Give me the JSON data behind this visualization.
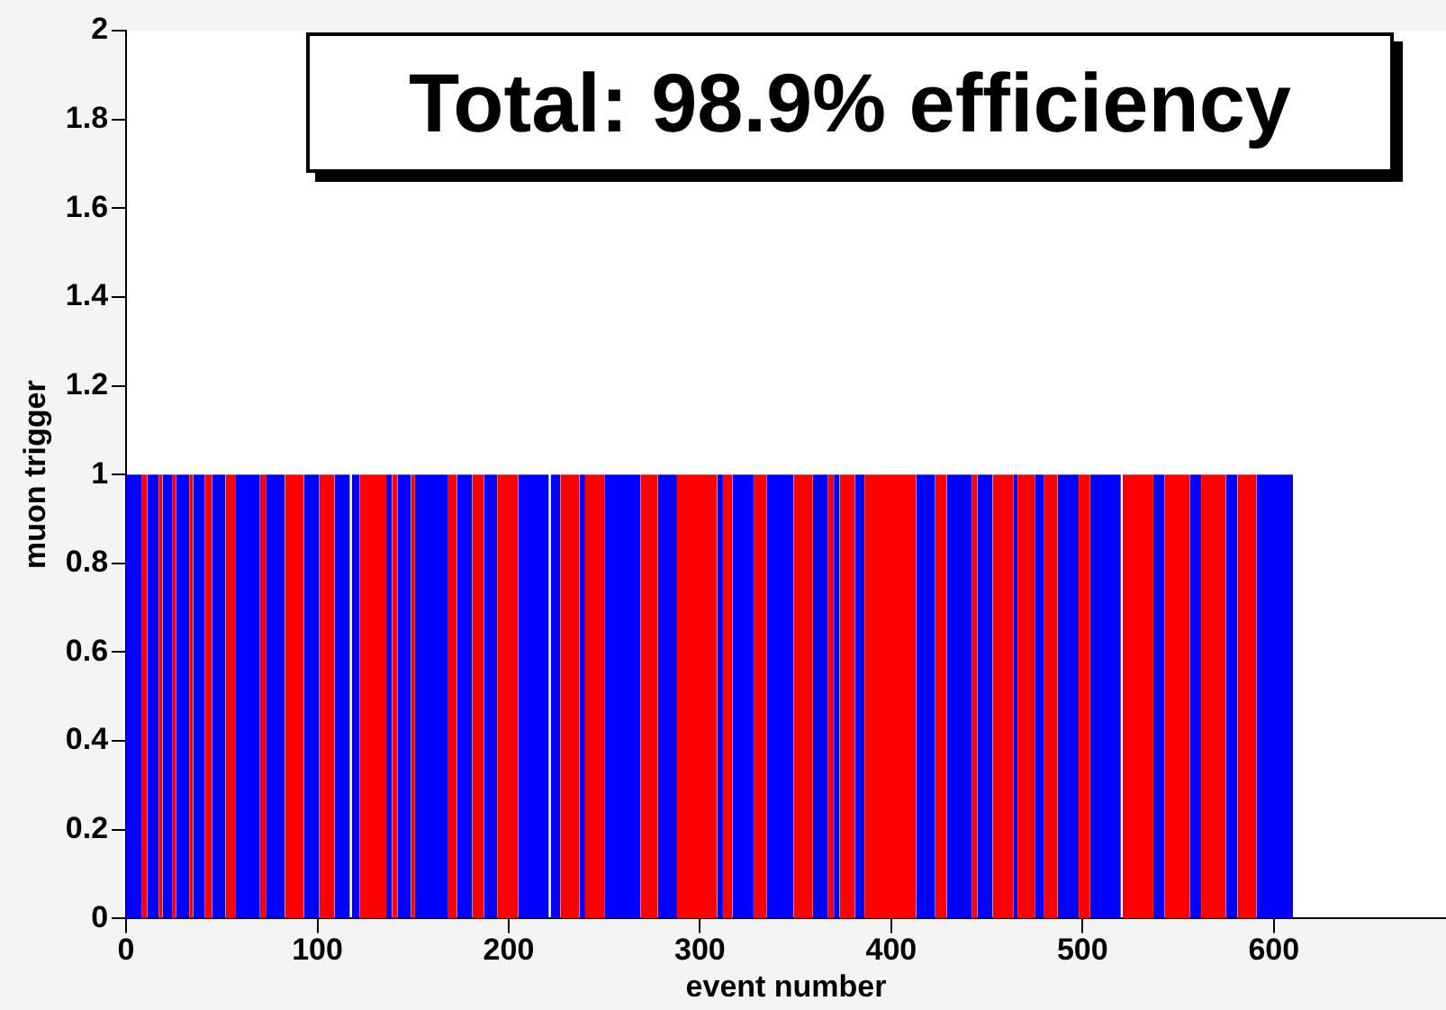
{
  "chart_data": {
    "type": "histogram",
    "title": "Total: 98.9% efficiency",
    "xlabel": "event number",
    "ylabel": "muon trigger",
    "bins": [
      0,
      8,
      11,
      17,
      19,
      24,
      26,
      33,
      35,
      41,
      45,
      52,
      57,
      70,
      73,
      83,
      93,
      101,
      109,
      117,
      118,
      122,
      136,
      139,
      142,
      149,
      151,
      168,
      173,
      181,
      187,
      194,
      205,
      221,
      222,
      227,
      237,
      240,
      250,
      269,
      278,
      288,
      309,
      312,
      317,
      328,
      335,
      349,
      359,
      367,
      370,
      373,
      381,
      386,
      413,
      423,
      429,
      442,
      445,
      453,
      464,
      466,
      475,
      480,
      487,
      498,
      504,
      520,
      521,
      537,
      543,
      556,
      562,
      575,
      581,
      591,
      610
    ],
    "values": [
      1,
      1,
      1,
      1,
      1,
      1,
      1,
      1,
      1,
      1,
      1,
      1,
      1,
      1,
      1,
      1,
      1,
      1,
      1,
      0,
      1,
      1,
      1,
      1,
      1,
      1,
      1,
      1,
      1,
      1,
      1,
      1,
      1,
      0,
      1,
      1,
      1,
      1,
      1,
      1,
      1,
      1,
      1,
      1,
      1,
      1,
      1,
      1,
      1,
      1,
      1,
      1,
      1,
      1,
      1,
      1,
      1,
      1,
      1,
      1,
      1,
      1,
      1,
      1,
      1,
      1,
      1,
      0,
      1,
      1,
      1,
      1,
      1,
      1,
      1,
      1
    ],
    "colors": [
      "#0000ff",
      "#ff0000",
      "#0000ff",
      "#ff0000",
      "#0000ff",
      "#ff0000",
      "#0000ff",
      "#ff0000",
      "#0000ff",
      "#ff0000",
      "#0000ff",
      "#ff0000",
      "#0000ff",
      "#ff0000",
      "#0000ff",
      "#ff0000",
      "#0000ff",
      "#ff0000",
      "#0000ff",
      "#0000ff",
      "#0000ff",
      "#ff0000",
      "#0000ff",
      "#ff0000",
      "#0000ff",
      "#ff0000",
      "#0000ff",
      "#ff0000",
      "#0000ff",
      "#ff0000",
      "#0000ff",
      "#ff0000",
      "#0000ff",
      "#0000ff",
      "#0000ff",
      "#ff0000",
      "#0000ff",
      "#ff0000",
      "#0000ff",
      "#ff0000",
      "#0000ff",
      "#ff0000",
      "#0000ff",
      "#ff0000",
      "#0000ff",
      "#ff0000",
      "#0000ff",
      "#ff0000",
      "#0000ff",
      "#ff0000",
      "#0000ff",
      "#ff0000",
      "#0000ff",
      "#ff0000",
      "#0000ff",
      "#ff0000",
      "#0000ff",
      "#ff0000",
      "#0000ff",
      "#ff0000",
      "#0000ff",
      "#ff0000",
      "#0000ff",
      "#ff0000",
      "#0000ff",
      "#ff0000",
      "#0000ff",
      "#0000ff",
      "#ff0000",
      "#0000ff",
      "#ff0000",
      "#0000ff",
      "#ff0000",
      "#0000ff",
      "#ff0000",
      "#0000ff"
    ],
    "xlim": [
      0,
      690
    ],
    "xticks": [
      0,
      100,
      200,
      300,
      400,
      500,
      600
    ],
    "ylim": [
      0,
      2
    ],
    "yticks": [
      0,
      0.2,
      0.4,
      0.6,
      0.8,
      1,
      1.2,
      1.4,
      1.6,
      1.8,
      2
    ],
    "grid": false
  }
}
